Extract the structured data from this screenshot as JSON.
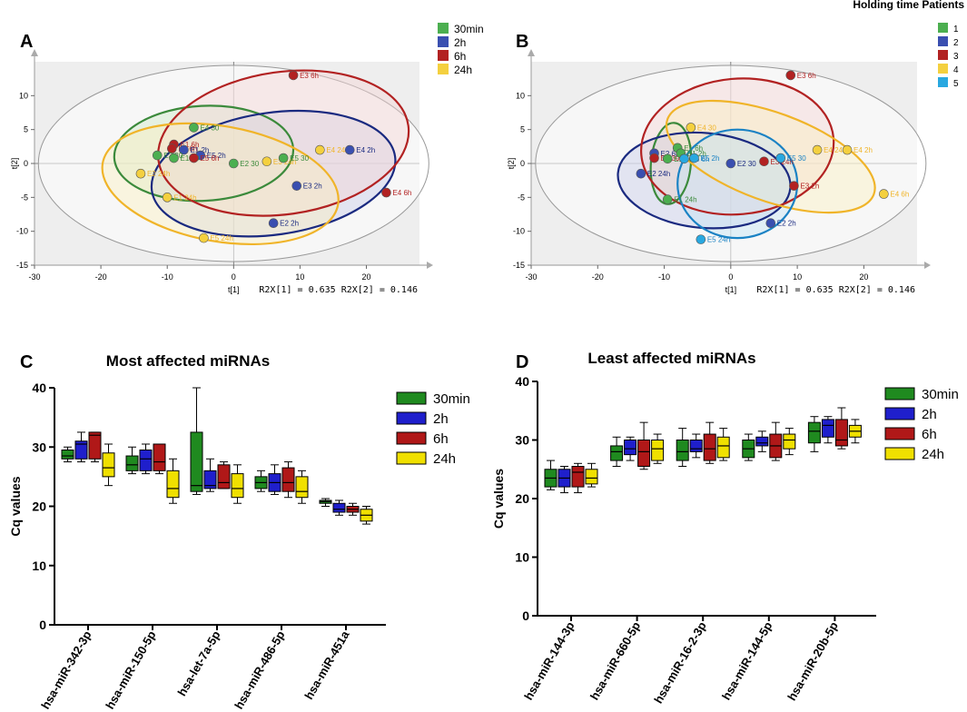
{
  "chart_data": [
    {
      "panel": "A",
      "type": "scatter",
      "xlabel": "t[1]",
      "ylabel": "t[2]",
      "xlim": [
        -30,
        30
      ],
      "ylim": [
        -15,
        15
      ],
      "xticks": [
        -30,
        -20,
        -10,
        0,
        10,
        20
      ],
      "yticks": [
        -15,
        -10,
        -5,
        0,
        5,
        10
      ],
      "footnote": "R2X[1] = 0.635 R2X[2] = 0.146",
      "legend_title": "Holding time",
      "legend": [
        {
          "name": "30min",
          "color": "#4caf50"
        },
        {
          "name": "2h",
          "color": "#3a4fb0"
        },
        {
          "name": "6h",
          "color": "#b22222"
        },
        {
          "name": "24h",
          "color": "#f4d03f"
        }
      ],
      "ellipses": [
        {
          "group": "30min",
          "cx": -4.5,
          "cy": 1.5,
          "rx": 13.5,
          "ry": 7,
          "angle": -3,
          "stroke": "#3b8a3b",
          "fill": "#cfe8c8"
        },
        {
          "group": "2h",
          "cx": 6,
          "cy": -1.5,
          "rx": 18.5,
          "ry": 9,
          "angle": -8,
          "stroke": "#1a2a80",
          "fill": "#c8cde8"
        },
        {
          "group": "6h",
          "cx": 7.5,
          "cy": 3,
          "rx": 19,
          "ry": 10.5,
          "angle": -8,
          "stroke": "#b22222",
          "fill": "#f5d5d5"
        },
        {
          "group": "24h",
          "cx": -2,
          "cy": -3,
          "rx": 18,
          "ry": 8.5,
          "angle": 10,
          "stroke": "#f0b429",
          "fill": "#fbf0c0"
        }
      ],
      "points": [
        {
          "label": "E3 6h",
          "x": 9,
          "y": 13,
          "group": "6h"
        },
        {
          "label": "E4 30",
          "x": -6,
          "y": 5.3,
          "group": "30min"
        },
        {
          "label": "E1 6h",
          "x": -9,
          "y": 2.8,
          "group": "6h"
        },
        {
          "label": "E2 6h",
          "x": -9.3,
          "y": 2.2,
          "group": "6h"
        },
        {
          "label": "E1 2h",
          "x": -7.5,
          "y": 2,
          "group": "2h"
        },
        {
          "label": "E3 30",
          "x": -11.5,
          "y": 1.2,
          "group": "30min"
        },
        {
          "label": "E5 2h",
          "x": -5,
          "y": 1.2,
          "group": "2h"
        },
        {
          "label": "E1 30",
          "x": -9,
          "y": 0.8,
          "group": "30min"
        },
        {
          "label": "E5 6h",
          "x": -6,
          "y": 0.8,
          "group": "6h"
        },
        {
          "label": "E2 30",
          "x": 0,
          "y": 0,
          "group": "30min"
        },
        {
          "label": "E3 24h",
          "x": 5,
          "y": 0.3,
          "group": "24h"
        },
        {
          "label": "E5 30",
          "x": 7.5,
          "y": 0.8,
          "group": "30min"
        },
        {
          "label": "E4 24h",
          "x": 13,
          "y": 2,
          "group": "24h"
        },
        {
          "label": "E4 2h",
          "x": 17.5,
          "y": 2,
          "group": "2h"
        },
        {
          "label": "E2 24h",
          "x": -14,
          "y": -1.5,
          "group": "24h"
        },
        {
          "label": "E1 24h",
          "x": -10,
          "y": -5,
          "group": "24h"
        },
        {
          "label": "E3 2h",
          "x": 9.5,
          "y": -3.3,
          "group": "2h"
        },
        {
          "label": "E4 6h",
          "x": 23,
          "y": -4.3,
          "group": "6h"
        },
        {
          "label": "E2 2h",
          "x": 6,
          "y": -8.8,
          "group": "2h"
        },
        {
          "label": "E5 24h",
          "x": -4.5,
          "y": -11,
          "group": "24h"
        }
      ]
    },
    {
      "panel": "B",
      "type": "scatter",
      "xlabel": "t[1]",
      "ylabel": "t[2]",
      "xlim": [
        -30,
        30
      ],
      "ylim": [
        -15,
        15
      ],
      "xticks": [
        -30,
        -20,
        -10,
        0,
        10,
        20
      ],
      "yticks": [
        -15,
        -10,
        -5,
        0,
        5,
        10
      ],
      "footnote": "R2X[1] = 0.635 R2X[2] = 0.146",
      "legend_title": "Patients",
      "legend": [
        {
          "name": "1",
          "color": "#4caf50"
        },
        {
          "name": "2",
          "color": "#3a4fb0"
        },
        {
          "name": "3",
          "color": "#b22222"
        },
        {
          "name": "4",
          "color": "#f4d03f"
        },
        {
          "name": "5",
          "color": "#29a8e0"
        }
      ],
      "ellipses": [
        {
          "group": "1",
          "cx": -9,
          "cy": 0,
          "rx": 3,
          "ry": 6,
          "angle": 5,
          "stroke": "#3b8a3b",
          "fill": "#cfe8c8"
        },
        {
          "group": "2",
          "cx": -4,
          "cy": -2.5,
          "rx": 13,
          "ry": 7,
          "angle": 5,
          "stroke": "#1a2a80",
          "fill": "#c8cde8"
        },
        {
          "group": "3",
          "cx": 1,
          "cy": 2.5,
          "rx": 14.5,
          "ry": 10,
          "angle": -5,
          "stroke": "#b22222",
          "fill": "#f5d5d5"
        },
        {
          "group": "4",
          "cx": 6,
          "cy": 1,
          "rx": 16.5,
          "ry": 6.5,
          "angle": 20,
          "stroke": "#f0b429",
          "fill": "#fbf0c0"
        },
        {
          "group": "5",
          "cx": 1,
          "cy": -3,
          "rx": 9,
          "ry": 8,
          "angle": 0,
          "stroke": "#1a82c4",
          "fill": "#c5e4f5"
        }
      ],
      "points": [
        {
          "label": "E3 6h",
          "x": 9,
          "y": 13,
          "group": "3"
        },
        {
          "label": "E4 30",
          "x": -6,
          "y": 5.3,
          "group": "4"
        },
        {
          "label": "E2 6h",
          "x": -11.5,
          "y": 1.5,
          "group": "2"
        },
        {
          "label": "E1 6h",
          "x": -8,
          "y": 2.3,
          "group": "1"
        },
        {
          "label": "E3 30",
          "x": -11.5,
          "y": 0.8,
          "group": "3"
        },
        {
          "label": "E1 2h",
          "x": -7.5,
          "y": 1.5,
          "group": "1"
        },
        {
          "label": "E1 30",
          "x": -9.5,
          "y": 0.7,
          "group": "1"
        },
        {
          "label": "E5 6h",
          "x": -7,
          "y": 0.7,
          "group": "5"
        },
        {
          "label": "E5 2h",
          "x": -5.5,
          "y": 0.8,
          "group": "5"
        },
        {
          "label": "E2 30",
          "x": 0,
          "y": 0,
          "group": "2"
        },
        {
          "label": "E3 24h",
          "x": 5,
          "y": 0.3,
          "group": "3"
        },
        {
          "label": "E5 30",
          "x": 7.5,
          "y": 0.8,
          "group": "5"
        },
        {
          "label": "E4 24h",
          "x": 13,
          "y": 2,
          "group": "4"
        },
        {
          "label": "E4 2h",
          "x": 17.5,
          "y": 2,
          "group": "4"
        },
        {
          "label": "E2 24h",
          "x": -13.5,
          "y": -1.5,
          "group": "2"
        },
        {
          "label": "E1 24h",
          "x": -9.5,
          "y": -5.3,
          "group": "1"
        },
        {
          "label": "E3 2h",
          "x": 9.5,
          "y": -3.3,
          "group": "3"
        },
        {
          "label": "E4 6h",
          "x": 23,
          "y": -4.5,
          "group": "4"
        },
        {
          "label": "E2 2h",
          "x": 6,
          "y": -8.8,
          "group": "2"
        },
        {
          "label": "E5 24h",
          "x": -4.5,
          "y": -11.2,
          "group": "5"
        }
      ]
    },
    {
      "panel": "C",
      "type": "box",
      "title": "Most affected miRNAs",
      "ylabel": "Cq values",
      "ylim": [
        0,
        40
      ],
      "yticks": [
        0,
        10,
        20,
        30,
        40
      ],
      "categories": [
        "hsa-miR-342-3p",
        "hsa-miR-150-5p",
        "hsa-let-7a-5p",
        "hsa-miR-486-5p",
        "hsa-miR-451a"
      ],
      "series": [
        {
          "name": "30min",
          "color": "#1f8a1f",
          "boxes": [
            [
              27.5,
              28,
              28.5,
              29.5,
              30
            ],
            [
              25.5,
              26,
              27,
              28.5,
              30
            ],
            [
              22,
              22.5,
              23.5,
              32.5,
              40
            ],
            [
              22.5,
              23,
              24,
              25,
              26
            ],
            [
              20,
              20.5,
              20.8,
              21,
              21.3
            ]
          ]
        },
        {
          "name": "2h",
          "color": "#1f1fcc",
          "boxes": [
            [
              27.5,
              28,
              30.5,
              31,
              32.5
            ],
            [
              25.5,
              26,
              28,
              29.5,
              30.5
            ],
            [
              22.5,
              23,
              23.5,
              26,
              28
            ],
            [
              22,
              22.5,
              24,
              25.5,
              27
            ],
            [
              18.5,
              19,
              19.5,
              20.5,
              21
            ]
          ]
        },
        {
          "name": "6h",
          "color": "#b01818",
          "boxes": [
            [
              27.5,
              28,
              32,
              32.5,
              32.5
            ],
            [
              25.5,
              26,
              27.5,
              30.5,
              30.5
            ],
            [
              23,
              23,
              24,
              27,
              27.5
            ],
            [
              21.5,
              22.5,
              24,
              26.5,
              27.5
            ],
            [
              18.5,
              19,
              19.5,
              20,
              20.5
            ]
          ]
        },
        {
          "name": "24h",
          "color": "#f0e000",
          "boxes": [
            [
              23.5,
              25,
              26.5,
              29,
              30.5
            ],
            [
              20.5,
              21.5,
              23,
              26,
              28
            ],
            [
              20.5,
              21.5,
              23,
              25.5,
              27
            ],
            [
              20.5,
              21.5,
              22.5,
              25,
              26
            ],
            [
              17,
              17.5,
              18.5,
              19.5,
              20
            ]
          ]
        }
      ]
    },
    {
      "panel": "D",
      "type": "box",
      "title": "Least affected miRNAs",
      "ylabel": "Cq values",
      "ylim": [
        0,
        40
      ],
      "yticks": [
        0,
        10,
        20,
        30,
        40
      ],
      "categories": [
        "hsa-miR-144-3p",
        "hsa-miR-660-5p",
        "hsa-miR-16-2-3p",
        "hsa-miR-144-5p",
        "hsa-miR-20b-5p"
      ],
      "series": [
        {
          "name": "30min",
          "color": "#1f8a1f",
          "boxes": [
            [
              21.5,
              22,
              23.5,
              25,
              26.5
            ],
            [
              25.5,
              26.5,
              28,
              29,
              30.5
            ],
            [
              25.5,
              26.5,
              28,
              30,
              32
            ],
            [
              26.5,
              27,
              28.5,
              30,
              31
            ],
            [
              28,
              29.5,
              31.5,
              33,
              34
            ]
          ]
        },
        {
          "name": "2h",
          "color": "#1f1fcc",
          "boxes": [
            [
              21,
              22,
              23.5,
              25,
              25.5
            ],
            [
              26.5,
              27.5,
              28.5,
              30,
              30.5
            ],
            [
              27,
              28,
              28.5,
              30,
              31
            ],
            [
              28,
              29,
              29.5,
              30.5,
              31.5
            ],
            [
              29.5,
              30.5,
              32.5,
              33.5,
              34
            ]
          ]
        },
        {
          "name": "6h",
          "color": "#b01818",
          "boxes": [
            [
              21,
              22,
              24.5,
              25.5,
              26
            ],
            [
              25,
              25.5,
              28,
              30,
              33
            ],
            [
              26,
              26.5,
              28.5,
              31,
              33
            ],
            [
              26.5,
              27,
              29,
              31,
              33
            ],
            [
              28.5,
              29,
              30,
              33.5,
              35.5
            ]
          ]
        },
        {
          "name": "24h",
          "color": "#f0e000",
          "boxes": [
            [
              22,
              22.5,
              23.5,
              25,
              26
            ],
            [
              26,
              26.5,
              28.5,
              30,
              31
            ],
            [
              26.5,
              27,
              29,
              30.5,
              32
            ],
            [
              27.5,
              28.5,
              30,
              31,
              32
            ],
            [
              29.5,
              30.5,
              31.5,
              32.5,
              33.5
            ]
          ]
        }
      ]
    }
  ]
}
